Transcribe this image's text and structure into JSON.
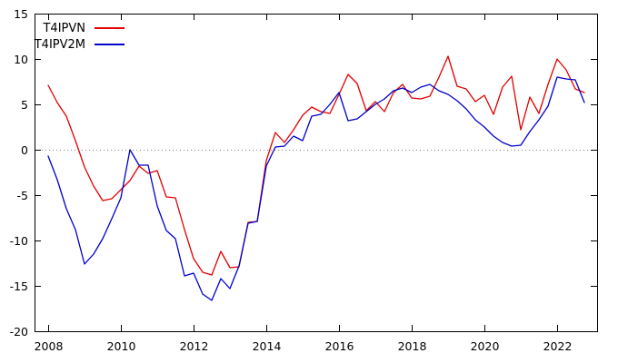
{
  "chart_data": {
    "type": "line",
    "title": "",
    "xlabel": "",
    "ylabel": "",
    "x_start": 2008,
    "x_step": 0.25,
    "x_unit": "quarterly",
    "xlim": [
      2007.625,
      2023.1
    ],
    "ylim": [
      -20,
      15
    ],
    "x_ticks": [
      2008,
      2010,
      2012,
      2014,
      2016,
      2018,
      2020,
      2022
    ],
    "y_ticks": [
      15,
      10,
      5,
      0,
      -5,
      -10,
      -15,
      -20
    ],
    "grid": false,
    "zero_line": {
      "show": true,
      "color": "#808080"
    },
    "legend_position": "top-left",
    "series": [
      {
        "name": "T4IPVN",
        "color": "#e10000",
        "values": [
          7.1,
          5.2,
          3.7,
          1.0,
          -1.9,
          -4.0,
          -5.6,
          -5.4,
          -4.4,
          -3.4,
          -1.8,
          -2.6,
          -2.3,
          -5.2,
          -5.3,
          -8.8,
          -12.0,
          -13.5,
          -13.8,
          -11.2,
          -13.0,
          -12.9,
          -8.0,
          -7.9,
          -1.2,
          1.9,
          0.8,
          2.2,
          3.8,
          4.7,
          4.2,
          4.0,
          6.1,
          8.3,
          7.3,
          4.3,
          5.3,
          4.2,
          6.3,
          7.2,
          5.7,
          5.6,
          5.9,
          8.0,
          10.3,
          7.0,
          6.7,
          5.3,
          6.0,
          3.9,
          6.9,
          8.1,
          2.2,
          5.8,
          4.0,
          7.2,
          10.0,
          8.8,
          6.7,
          6.3
        ]
      },
      {
        "name": "T4IPV2M",
        "color": "#0000cc",
        "values": [
          -0.7,
          -3.3,
          -6.5,
          -8.8,
          -12.6,
          -11.5,
          -9.8,
          -7.6,
          -5.3,
          0.0,
          -1.7,
          -1.7,
          -6.2,
          -8.9,
          -9.8,
          -13.9,
          -13.6,
          -15.9,
          -16.6,
          -14.2,
          -15.3,
          -12.8,
          -8.1,
          -7.9,
          -1.8,
          0.3,
          0.4,
          1.5,
          1.0,
          3.7,
          3.9,
          5.0,
          6.3,
          3.2,
          3.4,
          4.2,
          5.0,
          5.6,
          6.5,
          6.8,
          6.3,
          6.9,
          7.2,
          6.5,
          6.1,
          5.4,
          4.5,
          3.3,
          2.5,
          1.5,
          0.8,
          0.4,
          0.5,
          2.0,
          3.3,
          4.8,
          8.0,
          7.8,
          7.7,
          5.2
        ]
      }
    ]
  },
  "colors": {
    "axis": "#000000",
    "background": "#ffffff",
    "text": "#000000"
  }
}
